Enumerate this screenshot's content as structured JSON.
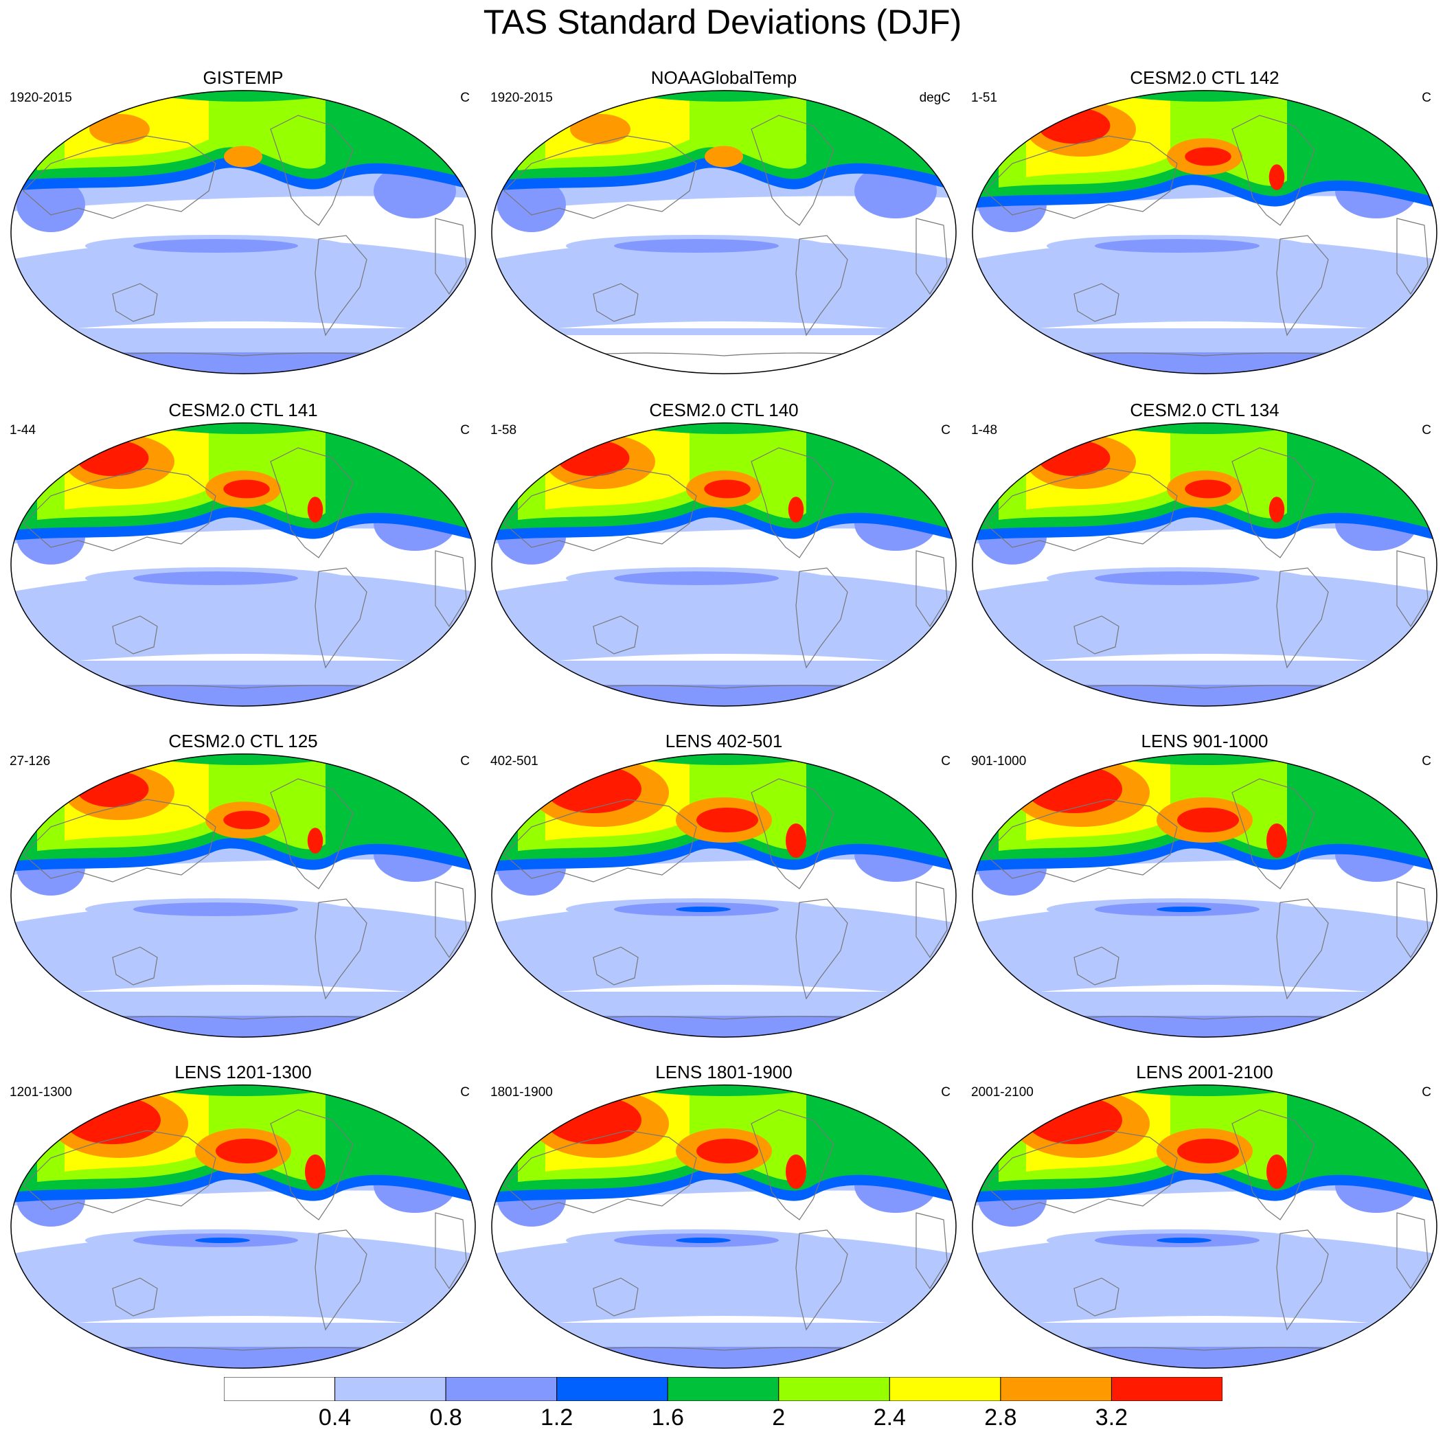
{
  "title": "TAS Standard Deviations (DJF)",
  "panels": [
    {
      "title": "GISTEMP",
      "left": "1920-2015",
      "right": "C",
      "source": "obs1"
    },
    {
      "title": "NOAAGlobalTemp",
      "left": "1920-2015",
      "right": "degC",
      "source": "obs2"
    },
    {
      "title": "CESM2.0 CTL 142",
      "left": "1-51",
      "right": "C",
      "source": "model"
    },
    {
      "title": "CESM2.0 CTL 141",
      "left": "1-44",
      "right": "C",
      "source": "model"
    },
    {
      "title": "CESM2.0 CTL 140",
      "left": "1-58",
      "right": "C",
      "source": "model"
    },
    {
      "title": "CESM2.0 CTL 134",
      "left": "1-48",
      "right": "C",
      "source": "model"
    },
    {
      "title": "CESM2.0 CTL 125",
      "left": "27-126",
      "right": "C",
      "source": "model"
    },
    {
      "title": "LENS 402-501",
      "left": "402-501",
      "right": "C",
      "source": "lens"
    },
    {
      "title": "LENS 901-1000",
      "left": "901-1000",
      "right": "C",
      "source": "lens"
    },
    {
      "title": "LENS 1201-1300",
      "left": "1201-1300",
      "right": "C",
      "source": "lens"
    },
    {
      "title": "LENS 1801-1900",
      "left": "1801-1900",
      "right": "C",
      "source": "lens"
    },
    {
      "title": "LENS 2001-2100",
      "left": "2001-2100",
      "right": "C",
      "source": "lens"
    }
  ],
  "colorbar": {
    "levels": [
      "0.4",
      "0.8",
      "1.2",
      "1.6",
      "2",
      "2.4",
      "2.8",
      "3.2"
    ],
    "colors": [
      "#ffffff",
      "#b4c8ff",
      "#8398ff",
      "#0061ff",
      "#00c23a",
      "#96ff00",
      "#ffff00",
      "#ff9900",
      "#ff1a00"
    ]
  },
  "map_style": {
    "ocean_outline": "#000000",
    "coast_color": "#777777"
  }
}
